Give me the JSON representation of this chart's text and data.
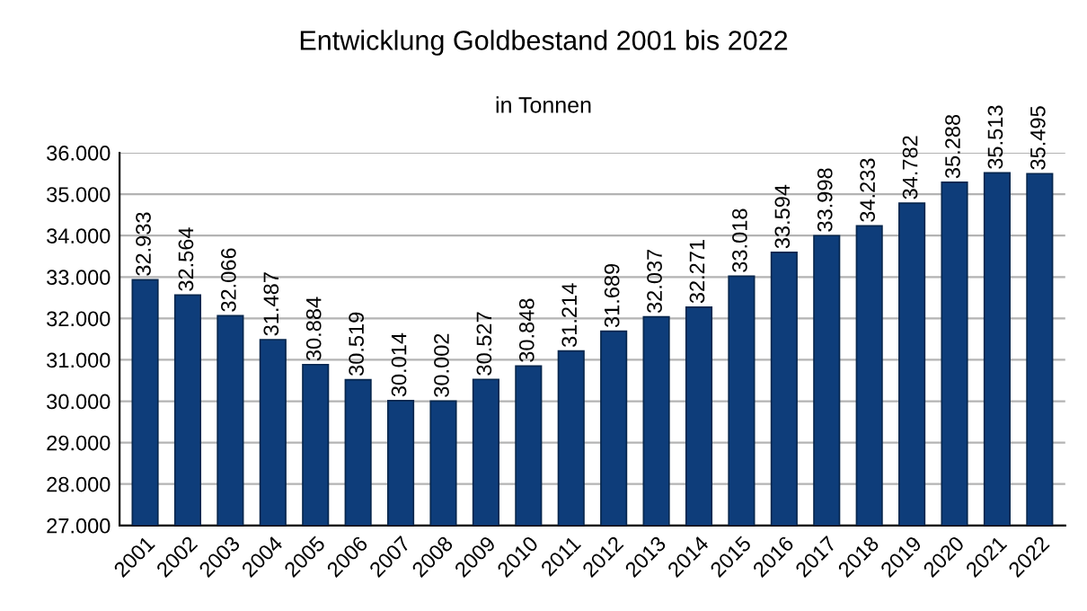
{
  "chart_data": {
    "type": "bar",
    "title": "Entwicklung Goldbestand 2001 bis 2022",
    "subtitle": "in Tonnen",
    "categories": [
      "2001",
      "2002",
      "2003",
      "2004",
      "2005",
      "2006",
      "2007",
      "2008",
      "2009",
      "2010",
      "2011",
      "2012",
      "2013",
      "2014",
      "2015",
      "2016",
      "2017",
      "2018",
      "2019",
      "2020",
      "2021",
      "2022"
    ],
    "values": [
      32933,
      32564,
      32066,
      31487,
      30884,
      30519,
      30014,
      30002,
      30527,
      30848,
      31214,
      31689,
      32037,
      32271,
      33018,
      33594,
      33998,
      34233,
      34782,
      35288,
      35513,
      35495
    ],
    "value_labels": [
      "32.933",
      "32.564",
      "32.066",
      "31.487",
      "30.884",
      "30.519",
      "30.014",
      "30.002",
      "30.527",
      "30.848",
      "31.214",
      "31.689",
      "32.037",
      "32.271",
      "33.018",
      "33.594",
      "33.998",
      "34.233",
      "34.782",
      "35.288",
      "35.513",
      "35.495"
    ],
    "color": "#0e3d7a",
    "ylim": [
      27000,
      36000
    ],
    "yticks": [
      {
        "value": 27000,
        "label": "27.000"
      },
      {
        "value": 28000,
        "label": "28.000"
      },
      {
        "value": 29000,
        "label": "29.000"
      },
      {
        "value": 30000,
        "label": "30.000"
      },
      {
        "value": 31000,
        "label": "31.000"
      },
      {
        "value": 32000,
        "label": "32.000"
      },
      {
        "value": 33000,
        "label": "33.000"
      },
      {
        "value": 34000,
        "label": "34.000"
      },
      {
        "value": 35000,
        "label": "35.000"
      },
      {
        "value": 36000,
        "label": "36.000"
      }
    ],
    "grid": "y",
    "legend": false
  }
}
